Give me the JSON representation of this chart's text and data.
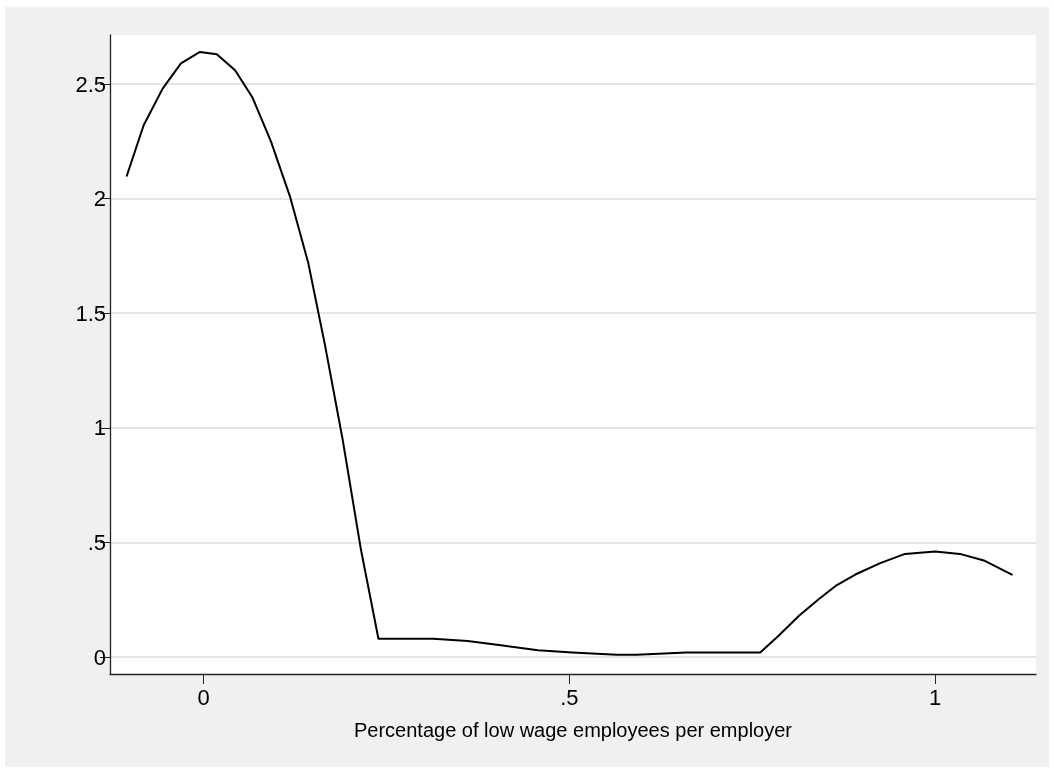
{
  "chart_data": {
    "type": "line",
    "xlabel": "Percentage of low wage employees per employer",
    "x": [
      -0.105,
      -0.082,
      -0.056,
      -0.031,
      -0.005,
      0.018,
      0.043,
      0.067,
      0.092,
      0.118,
      0.143,
      0.166,
      0.19,
      0.215,
      0.239,
      0.266,
      0.314,
      0.361,
      0.409,
      0.457,
      0.504,
      0.565,
      0.592,
      0.66,
      0.715,
      0.761,
      0.785,
      0.814,
      0.84,
      0.864,
      0.891,
      0.925,
      0.959,
      1.0,
      1.034,
      1.068,
      1.105
    ],
    "values": [
      2.1,
      2.32,
      2.48,
      2.59,
      2.64,
      2.63,
      2.56,
      2.44,
      2.25,
      2.01,
      1.72,
      1.36,
      0.95,
      0.47,
      0.08,
      0.08,
      0.08,
      0.07,
      0.05,
      0.03,
      0.02,
      0.01,
      0.01,
      0.02,
      0.02,
      0.02,
      0.09,
      0.18,
      0.25,
      0.31,
      0.36,
      0.41,
      0.45,
      0.46,
      0.45,
      0.42,
      0.36
    ],
    "color": "#000000",
    "xlim": [
      -0.128,
      1.138
    ],
    "xticks": [
      0,
      {
        "value": 0.5,
        "label": ".5"
      },
      1
    ],
    "ylim": [
      -0.074,
      2.714
    ],
    "yticks": [
      0,
      {
        "value": 0.5,
        "label": ".5"
      },
      1,
      1.5,
      2,
      2.5
    ],
    "grid": "y",
    "marker": "none",
    "line_style": "solid"
  }
}
